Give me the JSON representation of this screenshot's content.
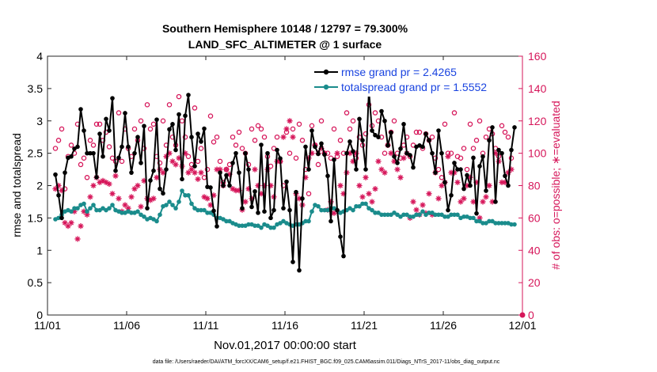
{
  "chart_data": {
    "type": "line",
    "title_line1": "Southern Hemisphere 10148 / 12797 = 79.300%",
    "title_line2": "LAND_SFC_ALTIMETER @ 1 surface",
    "xlabel": "Nov.01,2017 00:00:00 start",
    "ylabel_left": "rmse and totalspread",
    "ylabel_right": "# of obs: o=possible; ∗=evaluated",
    "footer": "data file: /Users/raeder/DAI/ATM_forcXX/CAM6_setup/f.e21.FHIST_BGC.f09_025.CAM6assim.011/Diags_NTrS_2017-11/obs_diag_output.nc",
    "x_ticks": [
      "11/01",
      "11/06",
      "11/11",
      "11/16",
      "11/21",
      "11/26",
      "12/01"
    ],
    "x_range": [
      0,
      30
    ],
    "ylim_left": [
      0,
      4
    ],
    "y_ticks_left": [
      "0",
      "0.5",
      "1",
      "1.5",
      "2",
      "2.5",
      "3",
      "3.5",
      "4"
    ],
    "ylim_right": [
      0,
      160
    ],
    "y_ticks_right": [
      "0",
      "20",
      "40",
      "60",
      "80",
      "100",
      "120",
      "140",
      "160"
    ],
    "legend": [
      {
        "label": "rmse grand pr = 2.4265",
        "color": "#000000"
      },
      {
        "label": "totalspread grand pr = 1.5552",
        "color": "#1a8c8c"
      }
    ],
    "colors": {
      "rmse": "#000000",
      "spread": "#1a8c8c",
      "obs": "#d6165a",
      "legend_text": "#1a44e0"
    },
    "rmse": [
      2.17,
      1.85,
      1.5,
      2.2,
      2.43,
      2.45,
      2.57,
      2.6,
      3.18,
      2.85,
      2.5,
      2.5,
      2.5,
      2.13,
      2.8,
      2.45,
      3.03,
      2.85,
      3.35,
      2.23,
      2.43,
      2.6,
      3.12,
      2.6,
      2.2,
      2.5,
      2.75,
      2.35,
      2.92,
      1.65,
      2.08,
      2.23,
      3.02,
      1.95,
      1.88,
      2.25,
      2.87,
      2.95,
      2.55,
      3.1,
      2.1,
      3.08,
      3.4,
      2.75,
      2.3,
      2.8,
      2.68,
      2.88,
      1.98,
      1.97,
      1.61,
      1.37,
      2.2,
      2.0,
      2.16,
      2.0,
      2.35,
      2.5,
      2.2,
      1.65,
      2.5,
      2.25,
      1.67,
      1.91,
      1.58,
      2.63,
      1.6,
      2.5,
      1.5,
      1.62,
      2.55,
      2.42,
      1.65,
      2.06,
      1.62,
      0.82,
      1.9,
      0.69,
      1.8,
      2.6,
      2.25,
      2.85,
      2.6,
      2.49,
      2.65,
      2.48,
      2.15,
      1.45,
      2.4,
      1.62,
      1.21,
      0.91,
      2.5,
      2.68,
      2.53,
      2.25,
      3.03,
      2.7,
      2.25,
      3.47,
      2.85,
      2.78,
      2.75,
      3.15,
      3.0,
      2.62,
      2.82,
      2.45,
      2.35,
      2.57,
      2.95,
      2.5,
      2.47,
      2.28,
      2.6,
      2.62,
      2.6,
      2.8,
      2.7,
      2.5,
      2.2,
      2.85,
      2.5,
      2.05,
      1.62,
      1.85,
      2.35,
      2.25,
      2.25,
      1.95,
      2.16,
      2.0,
      2.43,
      1.57,
      2.3,
      2.45,
      1.92,
      2.7,
      2.9,
      1.75,
      2.55,
      2.5,
      2.15,
      2.0,
      2.55,
      2.9
    ],
    "spread": [
      1.48,
      1.5,
      1.55,
      1.6,
      1.62,
      1.6,
      1.65,
      1.65,
      1.7,
      1.72,
      1.6,
      1.65,
      1.7,
      1.62,
      1.62,
      1.65,
      1.62,
      1.65,
      1.7,
      1.62,
      1.6,
      1.58,
      1.58,
      1.6,
      1.58,
      1.58,
      1.6,
      1.55,
      1.52,
      1.48,
      1.5,
      1.48,
      1.45,
      1.55,
      1.68,
      1.7,
      1.75,
      1.7,
      1.65,
      1.75,
      1.92,
      1.85,
      1.85,
      1.72,
      1.65,
      1.62,
      1.62,
      1.62,
      1.58,
      1.58,
      1.55,
      1.5,
      1.5,
      1.48,
      1.45,
      1.45,
      1.42,
      1.4,
      1.38,
      1.38,
      1.38,
      1.4,
      1.4,
      1.38,
      1.38,
      1.35,
      1.4,
      1.38,
      1.35,
      1.35,
      1.4,
      1.42,
      1.45,
      1.42,
      1.4,
      1.38,
      1.4,
      1.4,
      1.42,
      1.45,
      1.45,
      1.6,
      1.7,
      1.68,
      1.62,
      1.62,
      1.62,
      1.65,
      1.65,
      1.62,
      1.58,
      1.6,
      1.62,
      1.65,
      1.62,
      1.68,
      1.68,
      1.72,
      1.72,
      1.65,
      1.62,
      1.58,
      1.58,
      1.55,
      1.55,
      1.55,
      1.55,
      1.58,
      1.55,
      1.52,
      1.55,
      1.55,
      1.52,
      1.52,
      1.55,
      1.55,
      1.6,
      1.55,
      1.58,
      1.58,
      1.55,
      1.55,
      1.55,
      1.52,
      1.52,
      1.55,
      1.55,
      1.55,
      1.5,
      1.52,
      1.52,
      1.5,
      1.5,
      1.45,
      1.45,
      1.42,
      1.42,
      1.45,
      1.45,
      1.42,
      1.42,
      1.42,
      1.42,
      1.42,
      1.4,
      1.4
    ],
    "obs_possible": [
      103,
      108,
      115,
      78,
      98,
      105,
      100,
      118,
      93,
      97,
      85,
      108,
      105,
      118,
      118,
      108,
      113,
      104,
      97,
      95,
      125,
      95,
      115,
      103,
      98,
      115,
      108,
      120,
      103,
      130,
      115,
      118,
      98,
      94,
      120,
      105,
      130,
      110,
      105,
      135,
      120,
      110,
      98,
      93,
      128,
      95,
      103,
      85,
      90,
      123,
      107,
      110,
      95,
      82,
      90,
      93,
      110,
      105,
      113,
      103,
      100,
      93,
      115,
      108,
      117,
      115,
      110,
      98,
      92,
      103,
      110,
      95,
      80,
      113,
      100,
      115,
      97,
      118,
      108,
      90,
      75,
      117,
      105,
      93,
      120,
      100,
      100,
      97,
      115,
      98,
      108,
      100,
      125,
      115,
      120,
      97,
      110,
      105,
      112,
      130,
      117,
      125,
      120,
      110,
      100,
      105,
      113,
      120,
      100,
      97,
      105,
      110,
      98,
      105,
      113,
      113,
      103,
      112,
      108,
      110,
      97,
      90,
      85,
      118,
      100,
      100,
      125,
      98,
      97,
      103,
      90,
      118,
      103,
      108,
      120,
      100,
      110,
      115,
      112,
      103,
      98,
      117,
      113,
      110,
      97
    ],
    "obs_evaluated": [
      78,
      80,
      77,
      57,
      55,
      57,
      64,
      47,
      55,
      64,
      62,
      73,
      80,
      85,
      82,
      83,
      82,
      81,
      75,
      86,
      72,
      64,
      68,
      66,
      73,
      78,
      80,
      67,
      83,
      72,
      71,
      72,
      85,
      90,
      88,
      98,
      100,
      95,
      93,
      97,
      92,
      100,
      88,
      90,
      88,
      84,
      88,
      73,
      72,
      68,
      74,
      90,
      90,
      80,
      90,
      87,
      78,
      77,
      77,
      65,
      70,
      78,
      72,
      90,
      80,
      75,
      80,
      90,
      80,
      73,
      95,
      95,
      110,
      115,
      120,
      110,
      75,
      72,
      68,
      85,
      97,
      100,
      105,
      100,
      103,
      100,
      65,
      70,
      63,
      100,
      80,
      75,
      88,
      100,
      95,
      100,
      80,
      73,
      85,
      75,
      70,
      78,
      95,
      90,
      88,
      105,
      100,
      95,
      90,
      85,
      97,
      100,
      60,
      70,
      65,
      62,
      68,
      63,
      75,
      62,
      88,
      72,
      80,
      82,
      98,
      88,
      88,
      82,
      70,
      72,
      80,
      85,
      70,
      82,
      60,
      70,
      73,
      80,
      70,
      100,
      95,
      82,
      82,
      88,
      90
    ]
  }
}
